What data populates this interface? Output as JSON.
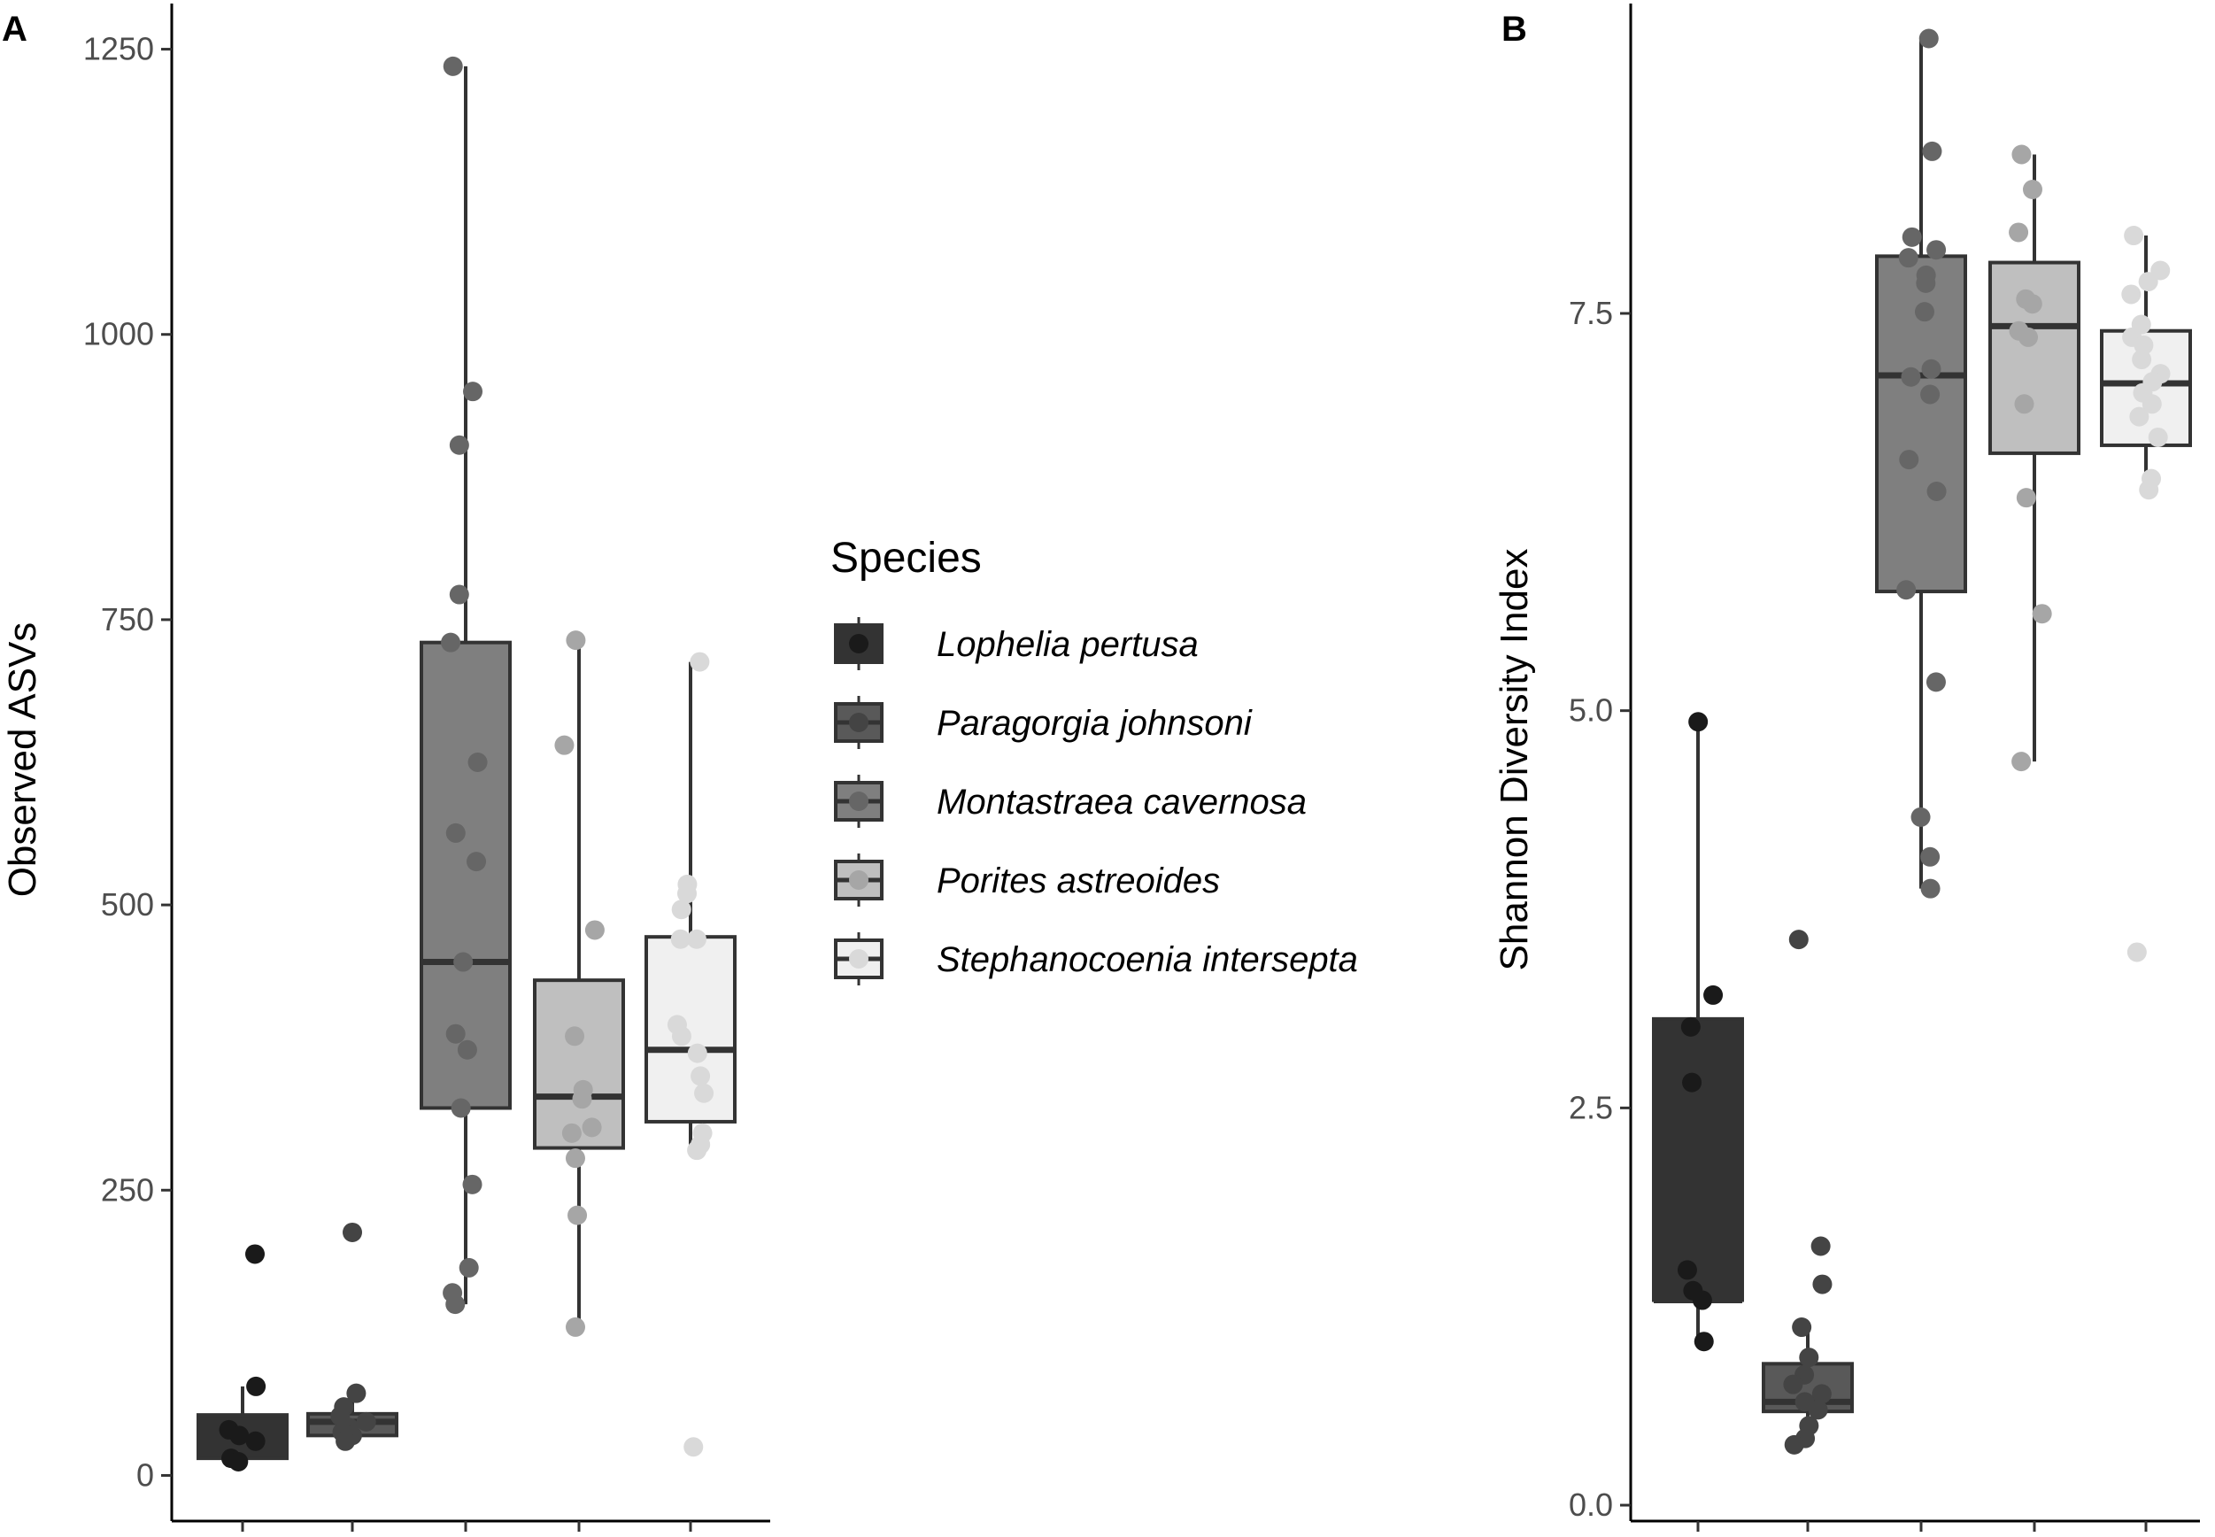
{
  "legend": {
    "title": "Species",
    "entries": [
      "Lophelia pertusa",
      "Paragorgia johnsoni",
      "Montastraea cavernosa",
      "Porites astreoides",
      "Stephanocoenia intersepta"
    ]
  },
  "colors": {
    "Lophelia pertusa": {
      "fill": "#333333",
      "point": "#1a1a1a"
    },
    "Paragorgia johnsoni": {
      "fill": "#595959",
      "point": "#444444"
    },
    "Montastraea cavernosa": {
      "fill": "#7f7f7f",
      "point": "#666666"
    },
    "Porites astreoides": {
      "fill": "#bfbfbf",
      "point": "#a6a6a6"
    },
    "Stephanocoenia intersepta": {
      "fill": "#f0f0f0",
      "point": "#d9d9d9"
    },
    "line": "#333333"
  },
  "chart_data": [
    {
      "type": "box",
      "panel_label": "A",
      "title": "",
      "xlabel": "",
      "ylabel": "Observed ASVs",
      "ylim": [
        -40,
        1290
      ],
      "yticks": [
        "0",
        "250",
        "500",
        "750",
        "1000",
        "1250"
      ],
      "categories": [
        "Lophelia pertusa",
        "Paragorgia johnsoni",
        "Montastraea cavernosa",
        "Porites astreoides",
        "Stephanocoenia intersepta"
      ],
      "boxes": [
        {
          "min": 15,
          "q1": 15,
          "median": 38,
          "q3": 53,
          "max": 78
        },
        {
          "min": 28,
          "q1": 35,
          "median": 47,
          "q3": 54,
          "max": 72
        },
        {
          "min": 150,
          "q1": 322,
          "median": 450,
          "q3": 730,
          "max": 1235
        },
        {
          "min": 130,
          "q1": 287,
          "median": 332,
          "q3": 434,
          "max": 732
        },
        {
          "min": 285,
          "q1": 310,
          "median": 373,
          "q3": 472,
          "max": 713
        }
      ],
      "points": [
        [
          194,
          78,
          40,
          35,
          30,
          15,
          12
        ],
        [
          213,
          72,
          60,
          52,
          47,
          42,
          38,
          35,
          30
        ],
        [
          1235,
          950,
          903,
          772,
          730,
          625,
          563,
          538,
          450,
          387,
          373,
          322,
          255,
          182,
          160,
          150
        ],
        [
          732,
          640,
          478,
          385,
          338,
          330,
          305,
          300,
          278,
          228,
          130
        ],
        [
          713,
          518,
          510,
          496,
          470,
          470,
          395,
          385,
          370,
          350,
          335,
          300,
          290,
          285,
          25
        ]
      ]
    },
    {
      "type": "box",
      "panel_label": "B",
      "title": "",
      "xlabel": "",
      "ylabel": "Shannon Diversity Index",
      "ylim": [
        -0.1,
        9.45
      ],
      "yticks": [
        "0.0",
        "2.5",
        "5.0",
        "7.5"
      ],
      "categories": [
        "Lophelia pertusa",
        "Paragorgia johnsoni",
        "Montastraea cavernosa",
        "Porites astreoides",
        "Stephanocoenia intersepta"
      ],
      "boxes": [
        {
          "min": 1.03,
          "q1": 1.29,
          "median": 1.29,
          "q3": 3.06,
          "max": 4.93
        },
        {
          "min": 0.38,
          "q1": 0.59,
          "median": 0.65,
          "q3": 0.89,
          "max": 1.12
        },
        {
          "min": 3.88,
          "q1": 5.75,
          "median": 7.11,
          "q3": 7.86,
          "max": 9.23
        },
        {
          "min": 4.68,
          "q1": 6.62,
          "median": 7.42,
          "q3": 7.82,
          "max": 8.5
        },
        {
          "min": 6.37,
          "q1": 6.67,
          "median": 7.06,
          "q3": 7.39,
          "max": 7.99
        }
      ],
      "points": [
        [
          4.93,
          3.21,
          3.01,
          2.66,
          1.48,
          1.35,
          1.29,
          1.03
        ],
        [
          3.56,
          1.63,
          1.39,
          1.12,
          0.93,
          0.82,
          0.76,
          0.7,
          0.65,
          0.6,
          0.5,
          0.42,
          0.38
        ],
        [
          9.23,
          8.52,
          7.98,
          7.9,
          7.85,
          7.74,
          7.69,
          7.51,
          7.15,
          7.1,
          6.99,
          6.58,
          6.38,
          5.76,
          5.18,
          4.33,
          4.08,
          3.88
        ],
        [
          8.5,
          8.28,
          8.01,
          7.59,
          7.56,
          7.39,
          7.35,
          6.93,
          6.34,
          5.61,
          4.68
        ],
        [
          7.99,
          7.77,
          7.7,
          7.62,
          7.43,
          7.35,
          7.3,
          7.21,
          7.12,
          7.07,
          7.0,
          6.93,
          6.85,
          6.72,
          6.46,
          6.39,
          3.48
        ]
      ]
    }
  ]
}
